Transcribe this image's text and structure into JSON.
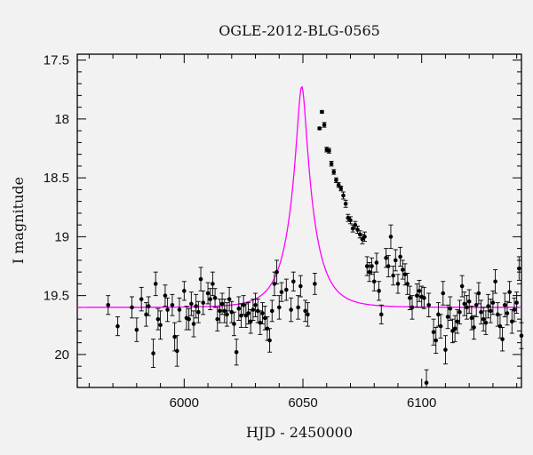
{
  "chart_data": {
    "type": "scatter",
    "title": "OGLE-2012-BLG-0565",
    "xlabel": "HJD - 2450000",
    "ylabel": "I magnitude",
    "xlim": [
      5955,
      6142
    ],
    "ylim": [
      20.28,
      17.45
    ],
    "y_inverted": true,
    "xticks": [
      6000,
      6050,
      6100
    ],
    "yticks": [
      17.5,
      18,
      18.5,
      19,
      19.5,
      20
    ],
    "grid": false,
    "colors": {
      "points": "#000000",
      "model": "#ff00ff",
      "background": "#f2f2f2"
    },
    "series": [
      {
        "type": "scatter-errorbars",
        "points": [
          [
            5968,
            19.58,
            0.08
          ],
          [
            5972,
            19.76,
            0.08
          ],
          [
            5978,
            19.6,
            0.09
          ],
          [
            5980,
            19.79,
            0.1
          ],
          [
            5982,
            19.53,
            0.1
          ],
          [
            5984,
            19.66,
            0.1
          ],
          [
            5985,
            19.59,
            0.08
          ],
          [
            5987,
            19.99,
            0.12
          ],
          [
            5988,
            19.4,
            0.1
          ],
          [
            5989,
            19.7,
            0.09
          ],
          [
            5990,
            19.75,
            0.12
          ],
          [
            5992,
            19.5,
            0.09
          ],
          [
            5993,
            19.62,
            0.1
          ],
          [
            5995,
            19.58,
            0.09
          ],
          [
            5996,
            19.85,
            0.12
          ],
          [
            5997,
            19.97,
            0.13
          ],
          [
            5998,
            19.62,
            0.1
          ],
          [
            6000,
            19.46,
            0.08
          ],
          [
            6001,
            19.69,
            0.1
          ],
          [
            6002,
            19.7,
            0.09
          ],
          [
            6003,
            19.57,
            0.1
          ],
          [
            6004,
            19.74,
            0.11
          ],
          [
            6005,
            19.59,
            0.1
          ],
          [
            6006,
            19.64,
            0.09
          ],
          [
            6007,
            19.36,
            0.1
          ],
          [
            6008,
            19.56,
            0.1
          ],
          [
            6010,
            19.48,
            0.09
          ],
          [
            6011,
            19.53,
            0.09
          ],
          [
            6012,
            19.4,
            0.1
          ],
          [
            6013,
            19.52,
            0.08
          ],
          [
            6014,
            19.7,
            0.1
          ],
          [
            6015,
            19.63,
            0.1
          ],
          [
            6016,
            19.57,
            0.09
          ],
          [
            6017,
            19.63,
            0.1
          ],
          [
            6018,
            19.66,
            0.1
          ],
          [
            6019,
            19.53,
            0.1
          ],
          [
            6020,
            19.64,
            0.09
          ],
          [
            6021,
            19.74,
            0.1
          ],
          [
            6022,
            19.98,
            0.11
          ],
          [
            6023,
            19.61,
            0.1
          ],
          [
            6024,
            19.67,
            0.1
          ],
          [
            6025,
            19.58,
            0.08
          ],
          [
            6026,
            19.67,
            0.1
          ],
          [
            6027,
            19.65,
            0.09
          ],
          [
            6028,
            19.72,
            0.1
          ],
          [
            6029,
            19.62,
            0.09
          ],
          [
            6030,
            19.58,
            0.1
          ],
          [
            6031,
            19.63,
            0.1
          ],
          [
            6032,
            19.73,
            0.1
          ],
          [
            6033,
            19.65,
            0.09
          ],
          [
            6034,
            19.69,
            0.1
          ],
          [
            6035,
            19.78,
            0.1
          ],
          [
            6036,
            19.88,
            0.1
          ],
          [
            6037,
            19.63,
            0.09
          ],
          [
            6038,
            19.4,
            0.1
          ],
          [
            6039,
            19.3,
            0.1
          ],
          [
            6040,
            19.6,
            0.1
          ],
          [
            6041,
            19.47,
            0.08
          ],
          [
            6043,
            19.45,
            0.09
          ],
          [
            6045,
            19.62,
            0.1
          ],
          [
            6046,
            19.38,
            0.08
          ],
          [
            6048,
            19.6,
            0.1
          ],
          [
            6049,
            19.42,
            0.09
          ],
          [
            6051,
            19.63,
            0.09
          ],
          [
            6052,
            19.66,
            0.1
          ],
          [
            6055,
            19.4,
            0.09
          ],
          [
            6057,
            18.08,
            0.01
          ],
          [
            6058,
            17.94,
            0.01
          ],
          [
            6059,
            18.05,
            0.02
          ],
          [
            6060,
            18.26,
            0.02
          ],
          [
            6061,
            18.27,
            0.02
          ],
          [
            6062,
            18.38,
            0.02
          ],
          [
            6063,
            18.45,
            0.02
          ],
          [
            6064,
            18.52,
            0.02
          ],
          [
            6065,
            18.56,
            0.02
          ],
          [
            6066,
            18.59,
            0.02
          ],
          [
            6067,
            18.65,
            0.03
          ],
          [
            6068,
            18.72,
            0.03
          ],
          [
            6069,
            18.84,
            0.03
          ],
          [
            6070,
            18.86,
            0.03
          ],
          [
            6071,
            18.93,
            0.03
          ],
          [
            6072,
            18.9,
            0.03
          ],
          [
            6073,
            18.94,
            0.03
          ],
          [
            6074,
            18.98,
            0.03
          ],
          [
            6075,
            19.02,
            0.04
          ],
          [
            6076,
            19.0,
            0.04
          ],
          [
            6077,
            19.25,
            0.08
          ],
          [
            6078,
            19.3,
            0.08
          ],
          [
            6079,
            19.25,
            0.07
          ],
          [
            6080,
            19.38,
            0.08
          ],
          [
            6081,
            19.22,
            0.08
          ],
          [
            6082,
            19.46,
            0.08
          ],
          [
            6083,
            19.66,
            0.08
          ],
          [
            6085,
            19.18,
            0.08
          ],
          [
            6086,
            19.25,
            0.09
          ],
          [
            6087,
            19.0,
            0.1
          ],
          [
            6088,
            19.33,
            0.08
          ],
          [
            6089,
            19.2,
            0.09
          ],
          [
            6090,
            19.4,
            0.08
          ],
          [
            6091,
            19.17,
            0.08
          ],
          [
            6092,
            19.28,
            0.08
          ],
          [
            6093,
            19.32,
            0.09
          ],
          [
            6094,
            19.4,
            0.09
          ],
          [
            6095,
            19.52,
            0.1
          ],
          [
            6096,
            19.6,
            0.1
          ],
          [
            6098,
            19.5,
            0.1
          ],
          [
            6099,
            19.46,
            0.09
          ],
          [
            6100,
            19.51,
            0.09
          ],
          [
            6101,
            19.52,
            0.09
          ],
          [
            6102,
            20.24,
            0.11
          ],
          [
            6103,
            19.58,
            0.1
          ],
          [
            6105,
            19.81,
            0.11
          ],
          [
            6106,
            19.88,
            0.11
          ],
          [
            6107,
            19.66,
            0.1
          ],
          [
            6108,
            19.76,
            0.1
          ],
          [
            6109,
            19.48,
            0.1
          ],
          [
            6110,
            19.96,
            0.12
          ],
          [
            6111,
            19.68,
            0.1
          ],
          [
            6112,
            19.61,
            0.1
          ],
          [
            6113,
            19.8,
            0.1
          ],
          [
            6114,
            19.78,
            0.11
          ],
          [
            6115,
            19.72,
            0.1
          ],
          [
            6116,
            19.64,
            0.1
          ],
          [
            6117,
            19.42,
            0.09
          ],
          [
            6118,
            19.57,
            0.1
          ],
          [
            6119,
            19.6,
            0.1
          ],
          [
            6120,
            19.55,
            0.1
          ],
          [
            6121,
            19.69,
            0.1
          ],
          [
            6122,
            19.77,
            0.1
          ],
          [
            6123,
            19.58,
            0.1
          ],
          [
            6124,
            19.48,
            0.09
          ],
          [
            6125,
            19.64,
            0.1
          ],
          [
            6126,
            19.7,
            0.1
          ],
          [
            6127,
            19.73,
            0.1
          ],
          [
            6128,
            19.59,
            0.1
          ],
          [
            6129,
            19.63,
            0.1
          ],
          [
            6130,
            19.56,
            0.1
          ],
          [
            6131,
            19.38,
            0.1
          ],
          [
            6132,
            19.66,
            0.1
          ],
          [
            6133,
            19.76,
            0.1
          ],
          [
            6134,
            19.87,
            0.1
          ],
          [
            6135,
            19.58,
            0.1
          ],
          [
            6136,
            19.65,
            0.1
          ],
          [
            6137,
            19.47,
            0.09
          ],
          [
            6138,
            19.72,
            0.1
          ],
          [
            6139,
            19.62,
            0.1
          ],
          [
            6140,
            19.56,
            0.09
          ],
          [
            6141,
            19.27,
            0.1
          ],
          [
            6142,
            19.84,
            0.11
          ]
        ]
      },
      {
        "type": "line",
        "model": {
          "base_mag": 19.6,
          "t0": 6049.5,
          "tE": 10.2,
          "u0": 0.18
        }
      }
    ]
  }
}
